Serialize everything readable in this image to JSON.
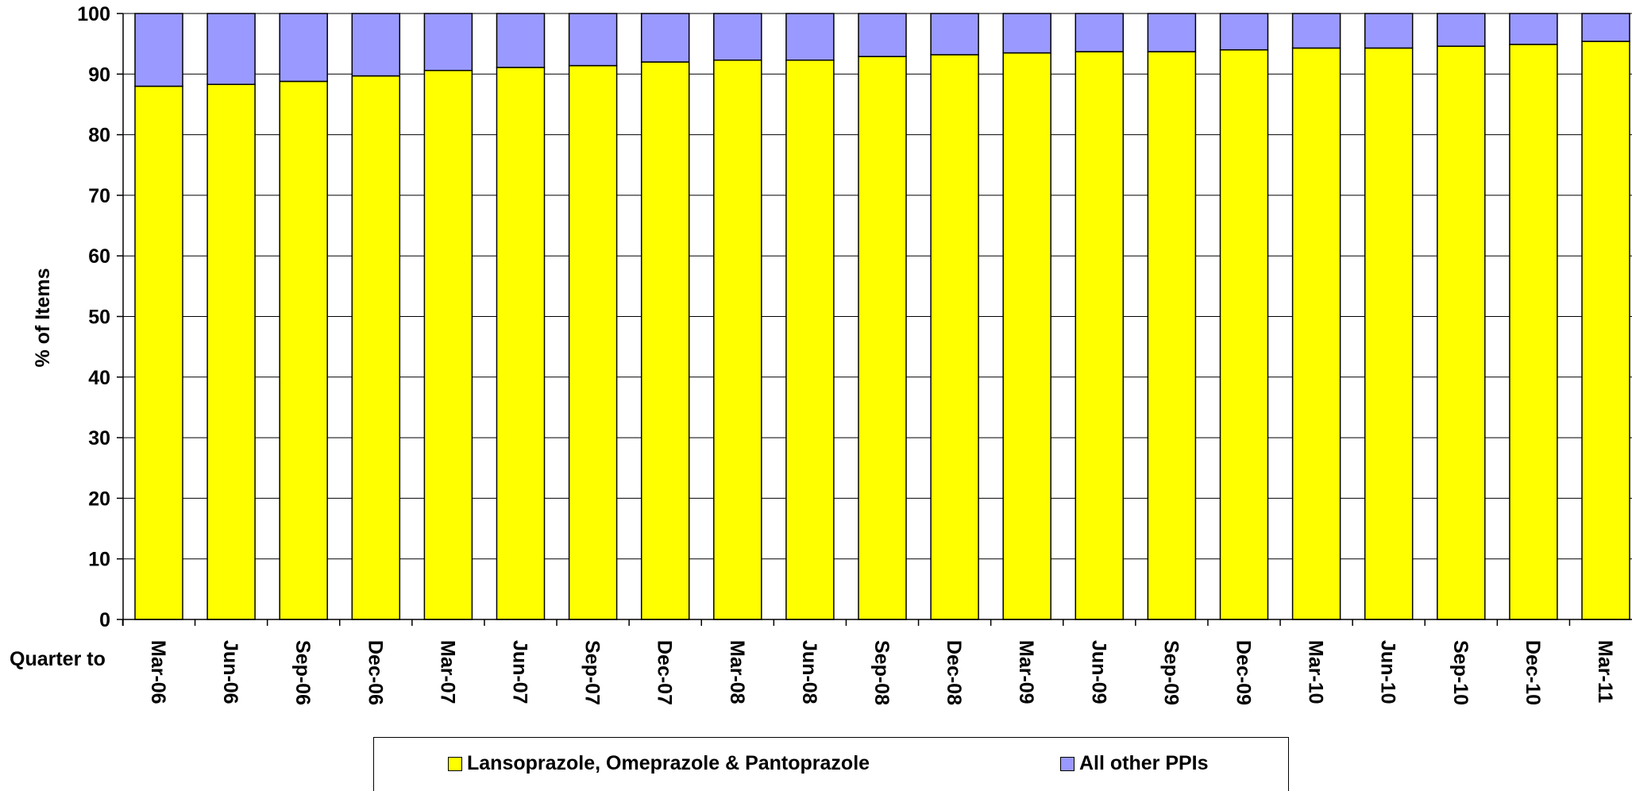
{
  "chart_data": {
    "type": "bar",
    "stacked": true,
    "title": "",
    "xlabel": "Quarter to",
    "ylabel": "% of Items",
    "ylim": [
      0,
      100
    ],
    "yticks": [
      0,
      10,
      20,
      30,
      40,
      50,
      60,
      70,
      80,
      90,
      100
    ],
    "grid": true,
    "legend_position": "bottom",
    "categories": [
      "Mar-06",
      "Jun-06",
      "Sep-06",
      "Dec-06",
      "Mar-07",
      "Jun-07",
      "Sep-07",
      "Dec-07",
      "Mar-08",
      "Jun-08",
      "Sep-08",
      "Dec-08",
      "Mar-09",
      "Jun-09",
      "Sep-09",
      "Dec-09",
      "Mar-10",
      "Jun-10",
      "Sep-10",
      "Dec-10",
      "Mar-11"
    ],
    "series": [
      {
        "name": "Lansoprazole, Omeprazole & Pantoprazole",
        "color": "#FFFF00",
        "values": [
          88.0,
          88.3,
          88.8,
          89.7,
          90.6,
          91.1,
          91.4,
          92.0,
          92.3,
          92.3,
          92.9,
          93.2,
          93.5,
          93.7,
          93.7,
          94.0,
          94.3,
          94.3,
          94.6,
          94.9,
          95.4
        ]
      },
      {
        "name": "All other PPIs",
        "color": "#9999FF",
        "values": [
          12.0,
          11.7,
          11.2,
          10.3,
          9.4,
          8.9,
          8.6,
          8.0,
          7.7,
          7.7,
          7.1,
          6.8,
          6.5,
          6.3,
          6.3,
          6.0,
          5.7,
          5.7,
          5.4,
          5.1,
          4.6
        ]
      }
    ]
  }
}
